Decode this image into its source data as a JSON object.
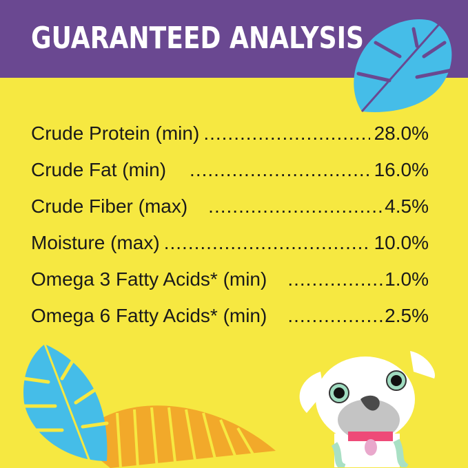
{
  "title": "GUARANTEED ANALYSIS",
  "colors": {
    "header": "#6a4891",
    "background": "#f6e841",
    "leaf_blue": "#45bde8",
    "leaf_orange": "#f2a92a"
  },
  "rows": [
    {
      "label": "Crude Protein (min)",
      "value": "28.0%"
    },
    {
      "label": "Crude Fat (min)",
      "value": "16.0%"
    },
    {
      "label": "Crude Fiber (max)",
      "value": "4.5%"
    },
    {
      "label": "Moisture (max)",
      "value": "10.0%"
    },
    {
      "label": "Omega 3 Fatty Acids* (min)",
      "value": "1.0%"
    },
    {
      "label": "Omega 6 Fatty Acids* (min)",
      "value": "2.5%"
    }
  ]
}
